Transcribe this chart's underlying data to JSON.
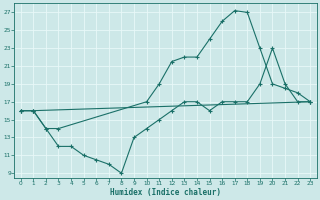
{
  "xlabel": "Humidex (Indice chaleur)",
  "bg_color": "#cde8e8",
  "line_color": "#1a7068",
  "grid_color": "#e8f8f8",
  "xlim": [
    -0.5,
    23.5
  ],
  "ylim": [
    8.5,
    28
  ],
  "xticks": [
    0,
    1,
    2,
    3,
    4,
    5,
    6,
    7,
    8,
    9,
    10,
    11,
    12,
    13,
    14,
    15,
    16,
    17,
    18,
    19,
    20,
    21,
    22,
    23
  ],
  "yticks": [
    9,
    11,
    13,
    15,
    17,
    19,
    21,
    23,
    25,
    27
  ],
  "line1_x": [
    0,
    1,
    2,
    3,
    10,
    11,
    12,
    13,
    14,
    15,
    16,
    17,
    18,
    19,
    20,
    21,
    22,
    23
  ],
  "line1_y": [
    16,
    16,
    14,
    14,
    17,
    19,
    21.5,
    22,
    22,
    24,
    26,
    27.2,
    27,
    23,
    19,
    18.5,
    18,
    17
  ],
  "line2_x": [
    0,
    1,
    23
  ],
  "line2_y": [
    16,
    16,
    17
  ],
  "line3_x": [
    0,
    1,
    2,
    3,
    4,
    5,
    6,
    7,
    8,
    9,
    10,
    11,
    12,
    13,
    14,
    15,
    16,
    17,
    18,
    19,
    20,
    21,
    22,
    23
  ],
  "line3_y": [
    16,
    16,
    14,
    12,
    12,
    11,
    10.5,
    10,
    9,
    13,
    14,
    15,
    16,
    17,
    17,
    16,
    17,
    17,
    17,
    19,
    23,
    19,
    17,
    17
  ]
}
